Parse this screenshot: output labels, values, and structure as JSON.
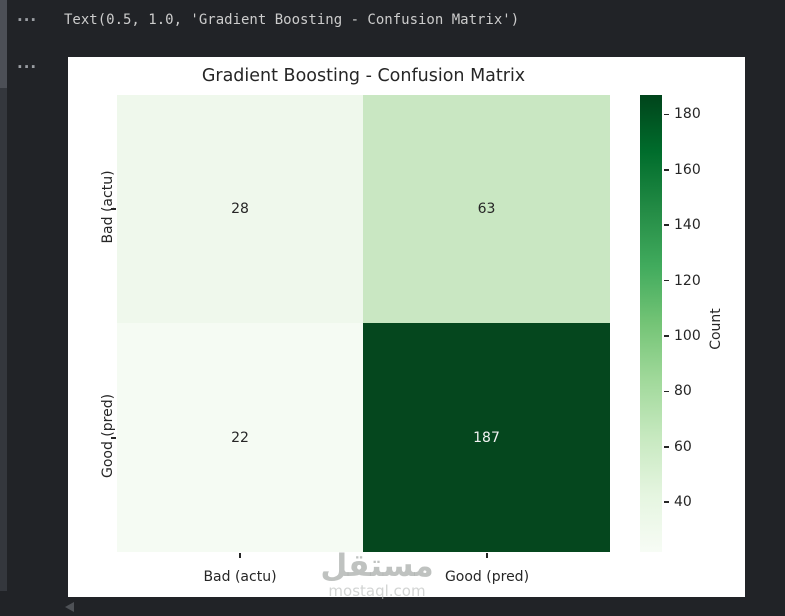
{
  "notebook": {
    "output_text": "Text(0.5, 1.0, 'Gradient Boosting - Confusion Matrix')",
    "collapse_marker": "···"
  },
  "chart_data": {
    "type": "heatmap",
    "title": "Gradient Boosting - Confusion Matrix",
    "x_categories": [
      "Bad (actu)",
      "Good (pred)"
    ],
    "y_categories": [
      "Bad (actu)",
      "Good (pred)"
    ],
    "values": [
      [
        28,
        63
      ],
      [
        22,
        187
      ]
    ],
    "cell_colors": [
      [
        "#eff8ec",
        "#c9e7c2"
      ],
      [
        "#f5fbf3",
        "#05471e"
      ]
    ],
    "cell_text_colors": [
      [
        "#262626",
        "#262626"
      ],
      [
        "#262626",
        "#f2f2f2"
      ]
    ],
    "colormap": "Greens",
    "colormap_stops": [
      {
        "pos": 0.0,
        "color": "#f7fcf5"
      },
      {
        "pos": 0.125,
        "color": "#e5f5e0"
      },
      {
        "pos": 0.25,
        "color": "#c7e9c0"
      },
      {
        "pos": 0.375,
        "color": "#a1d99b"
      },
      {
        "pos": 0.5,
        "color": "#74c476"
      },
      {
        "pos": 0.625,
        "color": "#41ab5d"
      },
      {
        "pos": 0.75,
        "color": "#238b45"
      },
      {
        "pos": 0.875,
        "color": "#006d2c"
      },
      {
        "pos": 1.0,
        "color": "#00441b"
      }
    ],
    "colorbar": {
      "label": "Count",
      "ticks": [
        40,
        60,
        80,
        100,
        120,
        140,
        160,
        180
      ],
      "vmin": 22,
      "vmax": 187
    },
    "legend_position": "right",
    "grid": false
  },
  "watermark": {
    "arabic": "مستقل",
    "domain": "mostaql.com"
  }
}
